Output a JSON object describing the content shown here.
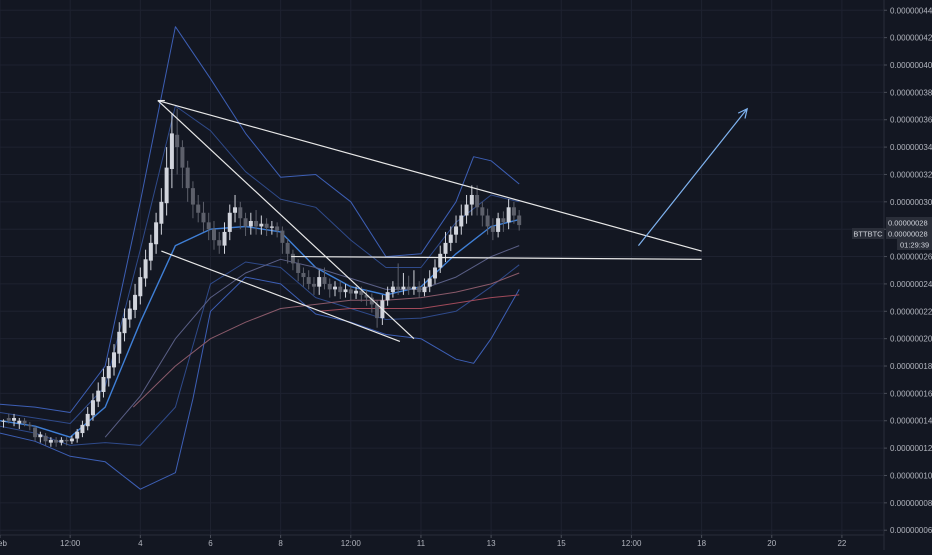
{
  "chart_data": {
    "type": "candlestick",
    "symbol": "BTTBTC",
    "countdown": "01:29:39",
    "last_price": "0.00000028",
    "bid_price": "0.00000028",
    "y_ticks": [
      "0.00000006",
      "0.00000008",
      "0.00000010",
      "0.00000012",
      "0.00000014",
      "0.00000016",
      "0.00000018",
      "0.00000020",
      "0.00000022",
      "0.00000024",
      "0.00000026",
      "0.00000028",
      "0.00000030",
      "0.00000032",
      "0.00000034",
      "0.00000036",
      "0.00000038",
      "0.00000040",
      "0.00000042",
      "0.00000044"
    ],
    "y_range": [
      5.65e-08,
      4.475e-07
    ],
    "x_ticks": [
      {
        "label": "Feb",
        "t": 0.5
      },
      {
        "label": "12:00",
        "t": 2.5
      },
      {
        "label": "4",
        "t": 4.5
      },
      {
        "label": "6",
        "t": 6.5
      },
      {
        "label": "8",
        "t": 8.5
      },
      {
        "label": "12:00",
        "t": 10.5
      },
      {
        "label": "11",
        "t": 12.5
      },
      {
        "label": "13",
        "t": 14.5
      },
      {
        "label": "15",
        "t": 16.5
      },
      {
        "label": "12:00",
        "t": 18.5
      },
      {
        "label": "18",
        "t": 20.5
      },
      {
        "label": "20",
        "t": 22.5
      },
      {
        "label": "22",
        "t": 24.5
      }
    ],
    "x_range": [
      0.5,
      25.7
    ],
    "candles": [
      [
        0.6,
        0.14,
        0.14,
        0.141,
        0.135
      ],
      [
        0.75,
        0.142,
        0.14,
        0.145,
        0.138
      ],
      [
        0.9,
        0.14,
        0.142,
        0.145,
        0.136
      ],
      [
        1.05,
        0.138,
        0.14,
        0.142,
        0.134
      ],
      [
        1.2,
        0.14,
        0.138,
        0.142,
        0.136
      ],
      [
        1.35,
        0.137,
        0.136,
        0.139,
        0.133
      ],
      [
        1.5,
        0.135,
        0.128,
        0.136,
        0.125
      ],
      [
        1.65,
        0.128,
        0.13,
        0.132,
        0.124
      ],
      [
        1.8,
        0.129,
        0.125,
        0.131,
        0.122
      ],
      [
        1.95,
        0.124,
        0.126,
        0.128,
        0.121
      ],
      [
        2.1,
        0.126,
        0.124,
        0.128,
        0.121
      ],
      [
        2.25,
        0.124,
        0.126,
        0.128,
        0.122
      ],
      [
        2.4,
        0.126,
        0.125,
        0.128,
        0.122
      ],
      [
        2.55,
        0.125,
        0.127,
        0.129,
        0.123
      ],
      [
        2.7,
        0.127,
        0.132,
        0.134,
        0.124
      ],
      [
        2.85,
        0.131,
        0.137,
        0.14,
        0.128
      ],
      [
        3.0,
        0.136,
        0.145,
        0.15,
        0.133
      ],
      [
        3.15,
        0.144,
        0.155,
        0.16,
        0.14
      ],
      [
        3.3,
        0.154,
        0.162,
        0.168,
        0.15
      ],
      [
        3.45,
        0.161,
        0.172,
        0.178,
        0.157
      ],
      [
        3.6,
        0.171,
        0.18,
        0.186,
        0.165
      ],
      [
        3.75,
        0.179,
        0.19,
        0.196,
        0.173
      ],
      [
        3.9,
        0.189,
        0.205,
        0.212,
        0.182
      ],
      [
        4.05,
        0.204,
        0.215,
        0.222,
        0.198
      ],
      [
        4.2,
        0.214,
        0.222,
        0.228,
        0.208
      ],
      [
        4.35,
        0.221,
        0.232,
        0.24,
        0.215
      ],
      [
        4.5,
        0.231,
        0.245,
        0.252,
        0.225
      ],
      [
        4.65,
        0.244,
        0.258,
        0.265,
        0.238
      ],
      [
        4.8,
        0.257,
        0.27,
        0.276,
        0.25
      ],
      [
        4.95,
        0.269,
        0.285,
        0.292,
        0.262
      ],
      [
        5.1,
        0.284,
        0.3,
        0.31,
        0.276
      ],
      [
        5.25,
        0.299,
        0.325,
        0.34,
        0.29
      ],
      [
        5.4,
        0.324,
        0.35,
        0.365,
        0.31
      ],
      [
        5.55,
        0.349,
        0.34,
        0.368,
        0.32
      ],
      [
        5.7,
        0.34,
        0.325,
        0.345,
        0.31
      ],
      [
        5.85,
        0.325,
        0.31,
        0.33,
        0.3
      ],
      [
        6.0,
        0.31,
        0.298,
        0.315,
        0.288
      ],
      [
        6.15,
        0.298,
        0.292,
        0.305,
        0.285
      ],
      [
        6.3,
        0.292,
        0.285,
        0.3,
        0.278
      ],
      [
        6.45,
        0.285,
        0.28,
        0.292,
        0.272
      ],
      [
        6.6,
        0.28,
        0.272,
        0.286,
        0.265
      ],
      [
        6.75,
        0.272,
        0.268,
        0.278,
        0.262
      ],
      [
        6.9,
        0.268,
        0.278,
        0.285,
        0.262
      ],
      [
        7.05,
        0.278,
        0.292,
        0.298,
        0.272
      ],
      [
        7.2,
        0.292,
        0.296,
        0.305,
        0.285
      ],
      [
        7.35,
        0.296,
        0.288,
        0.3,
        0.28
      ],
      [
        7.5,
        0.288,
        0.282,
        0.292,
        0.275
      ],
      [
        7.65,
        0.282,
        0.286,
        0.292,
        0.276
      ],
      [
        7.8,
        0.286,
        0.282,
        0.294,
        0.276
      ],
      [
        7.95,
        0.282,
        0.284,
        0.29,
        0.276
      ],
      [
        8.1,
        0.284,
        0.281,
        0.288,
        0.275
      ],
      [
        8.25,
        0.281,
        0.282,
        0.286,
        0.276
      ],
      [
        8.4,
        0.282,
        0.279,
        0.285,
        0.274
      ],
      [
        8.55,
        0.279,
        0.27,
        0.282,
        0.262
      ],
      [
        8.7,
        0.27,
        0.262,
        0.273,
        0.255
      ],
      [
        8.85,
        0.262,
        0.255,
        0.265,
        0.25
      ],
      [
        9.0,
        0.255,
        0.248,
        0.258,
        0.242
      ],
      [
        9.15,
        0.248,
        0.245,
        0.252,
        0.238
      ],
      [
        9.3,
        0.245,
        0.24,
        0.25,
        0.236
      ],
      [
        9.45,
        0.24,
        0.238,
        0.245,
        0.232
      ],
      [
        9.6,
        0.238,
        0.245,
        0.25,
        0.232
      ],
      [
        9.75,
        0.245,
        0.24,
        0.252,
        0.236
      ],
      [
        9.9,
        0.24,
        0.236,
        0.244,
        0.23
      ],
      [
        10.05,
        0.236,
        0.238,
        0.242,
        0.231
      ],
      [
        10.2,
        0.238,
        0.234,
        0.242,
        0.229
      ],
      [
        10.35,
        0.234,
        0.236,
        0.24,
        0.23
      ],
      [
        10.5,
        0.236,
        0.233,
        0.239,
        0.228
      ],
      [
        10.65,
        0.233,
        0.235,
        0.238,
        0.229
      ],
      [
        10.8,
        0.235,
        0.232,
        0.238,
        0.227
      ],
      [
        10.95,
        0.232,
        0.23,
        0.236,
        0.224
      ],
      [
        11.1,
        0.23,
        0.225,
        0.233,
        0.219
      ],
      [
        11.25,
        0.225,
        0.215,
        0.228,
        0.208
      ],
      [
        11.4,
        0.215,
        0.228,
        0.232,
        0.21
      ],
      [
        11.55,
        0.228,
        0.234,
        0.238,
        0.224
      ],
      [
        11.7,
        0.234,
        0.238,
        0.242,
        0.23
      ],
      [
        11.85,
        0.238,
        0.236,
        0.255,
        0.232
      ],
      [
        12.0,
        0.236,
        0.238,
        0.248,
        0.232
      ],
      [
        12.15,
        0.238,
        0.236,
        0.246,
        0.232
      ],
      [
        12.3,
        0.236,
        0.238,
        0.25,
        0.232
      ],
      [
        12.45,
        0.238,
        0.234,
        0.242,
        0.23
      ],
      [
        12.6,
        0.234,
        0.238,
        0.244,
        0.231
      ],
      [
        12.75,
        0.238,
        0.244,
        0.25,
        0.234
      ],
      [
        12.9,
        0.244,
        0.252,
        0.258,
        0.24
      ],
      [
        13.05,
        0.252,
        0.262,
        0.268,
        0.248
      ],
      [
        13.2,
        0.262,
        0.27,
        0.278,
        0.256
      ],
      [
        13.35,
        0.27,
        0.276,
        0.282,
        0.264
      ],
      [
        13.5,
        0.276,
        0.282,
        0.29,
        0.27
      ],
      [
        13.65,
        0.282,
        0.29,
        0.298,
        0.276
      ],
      [
        13.8,
        0.29,
        0.298,
        0.305,
        0.284
      ],
      [
        13.95,
        0.298,
        0.305,
        0.312,
        0.29
      ],
      [
        14.1,
        0.305,
        0.296,
        0.312,
        0.29
      ],
      [
        14.25,
        0.296,
        0.29,
        0.3,
        0.282
      ],
      [
        14.4,
        0.29,
        0.282,
        0.295,
        0.276
      ],
      [
        14.55,
        0.282,
        0.278,
        0.288,
        0.272
      ],
      [
        14.7,
        0.278,
        0.288,
        0.292,
        0.274
      ],
      [
        14.85,
        0.288,
        0.285,
        0.293,
        0.278
      ],
      [
        15.0,
        0.285,
        0.296,
        0.302,
        0.28
      ],
      [
        15.15,
        0.296,
        0.29,
        0.3,
        0.284
      ],
      [
        15.3,
        0.29,
        0.283,
        0.294,
        0.279
      ]
    ],
    "bb_upper": [
      [
        0.5,
        0.152
      ],
      [
        1.5,
        0.15
      ],
      [
        2.5,
        0.146
      ],
      [
        3.5,
        0.18
      ],
      [
        4.5,
        0.3
      ],
      [
        5.5,
        0.428
      ],
      [
        6.5,
        0.39
      ],
      [
        7.5,
        0.35
      ],
      [
        8.5,
        0.318
      ],
      [
        9.5,
        0.32
      ],
      [
        10.5,
        0.3
      ],
      [
        11.5,
        0.26
      ],
      [
        12.5,
        0.262
      ],
      [
        13.5,
        0.3
      ],
      [
        14.0,
        0.333
      ],
      [
        14.5,
        0.33
      ],
      [
        15.3,
        0.313
      ]
    ],
    "bb_lower": [
      [
        0.5,
        0.131
      ],
      [
        1.5,
        0.125
      ],
      [
        2.5,
        0.114
      ],
      [
        3.5,
        0.11
      ],
      [
        4.5,
        0.09
      ],
      [
        5.5,
        0.102
      ],
      [
        6.0,
        0.156
      ],
      [
        6.5,
        0.22
      ],
      [
        7.5,
        0.245
      ],
      [
        8.5,
        0.24
      ],
      [
        9.5,
        0.218
      ],
      [
        10.5,
        0.212
      ],
      [
        11.5,
        0.203
      ],
      [
        12.5,
        0.2
      ],
      [
        13.5,
        0.185
      ],
      [
        14.0,
        0.182
      ],
      [
        14.5,
        0.2
      ],
      [
        15.3,
        0.236
      ]
    ],
    "bb_upper2": [
      [
        0.5,
        0.146
      ],
      [
        1.5,
        0.142
      ],
      [
        2.5,
        0.138
      ],
      [
        3.5,
        0.165
      ],
      [
        4.5,
        0.265
      ],
      [
        5.5,
        0.37
      ],
      [
        6.5,
        0.352
      ],
      [
        7.5,
        0.322
      ],
      [
        8.5,
        0.302
      ],
      [
        9.5,
        0.296
      ],
      [
        10.5,
        0.272
      ],
      [
        11.5,
        0.252
      ],
      [
        12.5,
        0.252
      ],
      [
        13.5,
        0.285
      ],
      [
        14.5,
        0.305
      ],
      [
        15.3,
        0.3
      ]
    ],
    "bb_lower2": [
      [
        0.5,
        0.136
      ],
      [
        1.5,
        0.131
      ],
      [
        2.5,
        0.122
      ],
      [
        3.5,
        0.124
      ],
      [
        4.5,
        0.122
      ],
      [
        5.5,
        0.15
      ],
      [
        6.5,
        0.24
      ],
      [
        7.5,
        0.256
      ],
      [
        8.5,
        0.252
      ],
      [
        9.5,
        0.23
      ],
      [
        10.5,
        0.222
      ],
      [
        11.5,
        0.214
      ],
      [
        12.5,
        0.215
      ],
      [
        13.5,
        0.22
      ],
      [
        14.5,
        0.238
      ],
      [
        15.3,
        0.254
      ]
    ],
    "ema_fast": [
      [
        0.5,
        0.14
      ],
      [
        1.5,
        0.136
      ],
      [
        2.5,
        0.128
      ],
      [
        3.5,
        0.15
      ],
      [
        4.5,
        0.212
      ],
      [
        5.5,
        0.268
      ],
      [
        6.5,
        0.28
      ],
      [
        7.5,
        0.282
      ],
      [
        8.5,
        0.278
      ],
      [
        9.5,
        0.252
      ],
      [
        10.5,
        0.238
      ],
      [
        11.5,
        0.232
      ],
      [
        12.5,
        0.238
      ],
      [
        13.5,
        0.262
      ],
      [
        14.5,
        0.282
      ],
      [
        15.3,
        0.287
      ]
    ],
    "ema_slow": [
      [
        3.5,
        0.128
      ],
      [
        4.5,
        0.158
      ],
      [
        5.5,
        0.2
      ],
      [
        6.5,
        0.23
      ],
      [
        7.5,
        0.248
      ],
      [
        8.5,
        0.258
      ],
      [
        9.5,
        0.252
      ],
      [
        10.5,
        0.244
      ],
      [
        11.5,
        0.236
      ],
      [
        12.5,
        0.236
      ],
      [
        13.5,
        0.245
      ],
      [
        14.5,
        0.26
      ],
      [
        15.3,
        0.268
      ]
    ],
    "ma_slow": [
      [
        4.3,
        0.15
      ],
      [
        5.5,
        0.18
      ],
      [
        6.5,
        0.2
      ],
      [
        7.5,
        0.212
      ],
      [
        8.5,
        0.222
      ],
      [
        9.5,
        0.225
      ],
      [
        10.5,
        0.228
      ],
      [
        11.5,
        0.228
      ],
      [
        12.5,
        0.23
      ],
      [
        13.5,
        0.234
      ],
      [
        14.5,
        0.24
      ],
      [
        15.3,
        0.248
      ]
    ],
    "ma_200": [
      [
        9.6,
        0.22
      ],
      [
        10.5,
        0.222
      ],
      [
        11.5,
        0.222
      ],
      [
        12.5,
        0.222
      ],
      [
        13.5,
        0.226
      ],
      [
        14.5,
        0.23
      ],
      [
        15.3,
        0.232
      ]
    ],
    "trend_lines": [
      {
        "name": "upper-triangle-line",
        "points": [
          [
            5.0,
            0.374
          ],
          [
            20.5,
            0.264
          ]
        ]
      },
      {
        "name": "horizontal-support-line",
        "points": [
          [
            8.8,
            0.26
          ],
          [
            20.5,
            0.258
          ]
        ]
      },
      {
        "name": "wedge-upper-line",
        "points": [
          [
            5.0,
            0.374
          ],
          [
            12.3,
            0.2
          ]
        ]
      },
      {
        "name": "wedge-lower-line",
        "points": [
          [
            5.1,
            0.264
          ],
          [
            11.9,
            0.198
          ]
        ]
      },
      {
        "name": "apex-line",
        "points": [
          [
            5.0,
            0.374
          ],
          [
            5.2,
            0.374
          ]
        ]
      }
    ],
    "projection_arrow": {
      "points": [
        [
          18.7,
          0.268
        ],
        [
          21.8,
          0.368
        ]
      ]
    }
  }
}
